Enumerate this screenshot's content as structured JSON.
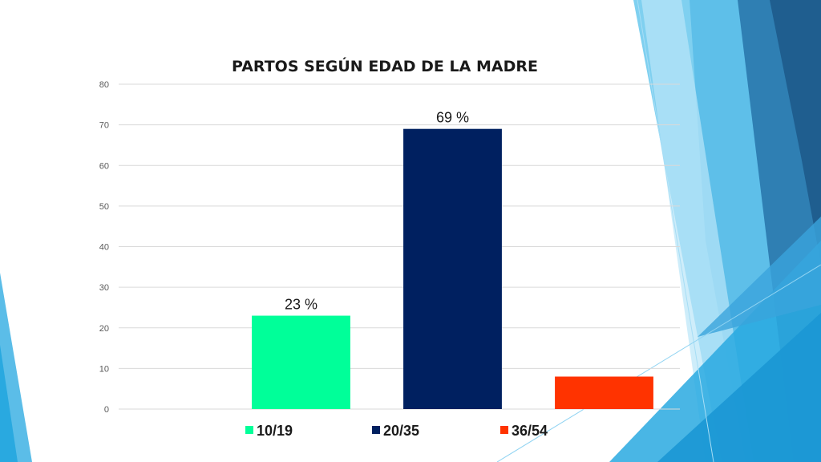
{
  "chart_data": {
    "type": "bar",
    "title": "PARTOS  SEGÚN EDAD DE LA MADRE",
    "xlabel": "",
    "ylabel": "",
    "ylim": [
      0,
      80
    ],
    "yticks": [
      0,
      10,
      20,
      30,
      40,
      50,
      60,
      70,
      80
    ],
    "grid": true,
    "legend_position": "bottom",
    "series": [
      {
        "name": "10/19",
        "value": 23,
        "label": "23 %",
        "color": "#00ff99"
      },
      {
        "name": "20/35",
        "value": 69,
        "label": "69 %",
        "color": "#002060"
      },
      {
        "name": "36/54",
        "value": 8,
        "label": "",
        "color": "#ff3300"
      }
    ]
  }
}
